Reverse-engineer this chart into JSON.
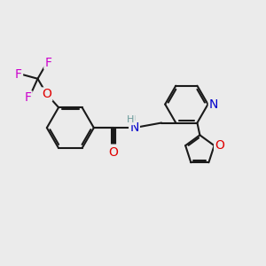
{
  "background_color": "#ebebeb",
  "bond_color": "#1a1a1a",
  "atom_colors": {
    "O": "#e00000",
    "N": "#0000cc",
    "F": "#cc00cc",
    "H": "#6a9a9a",
    "C": "#1a1a1a"
  },
  "bond_width": 1.5,
  "figsize": [
    3.0,
    3.0
  ],
  "dpi": 100
}
